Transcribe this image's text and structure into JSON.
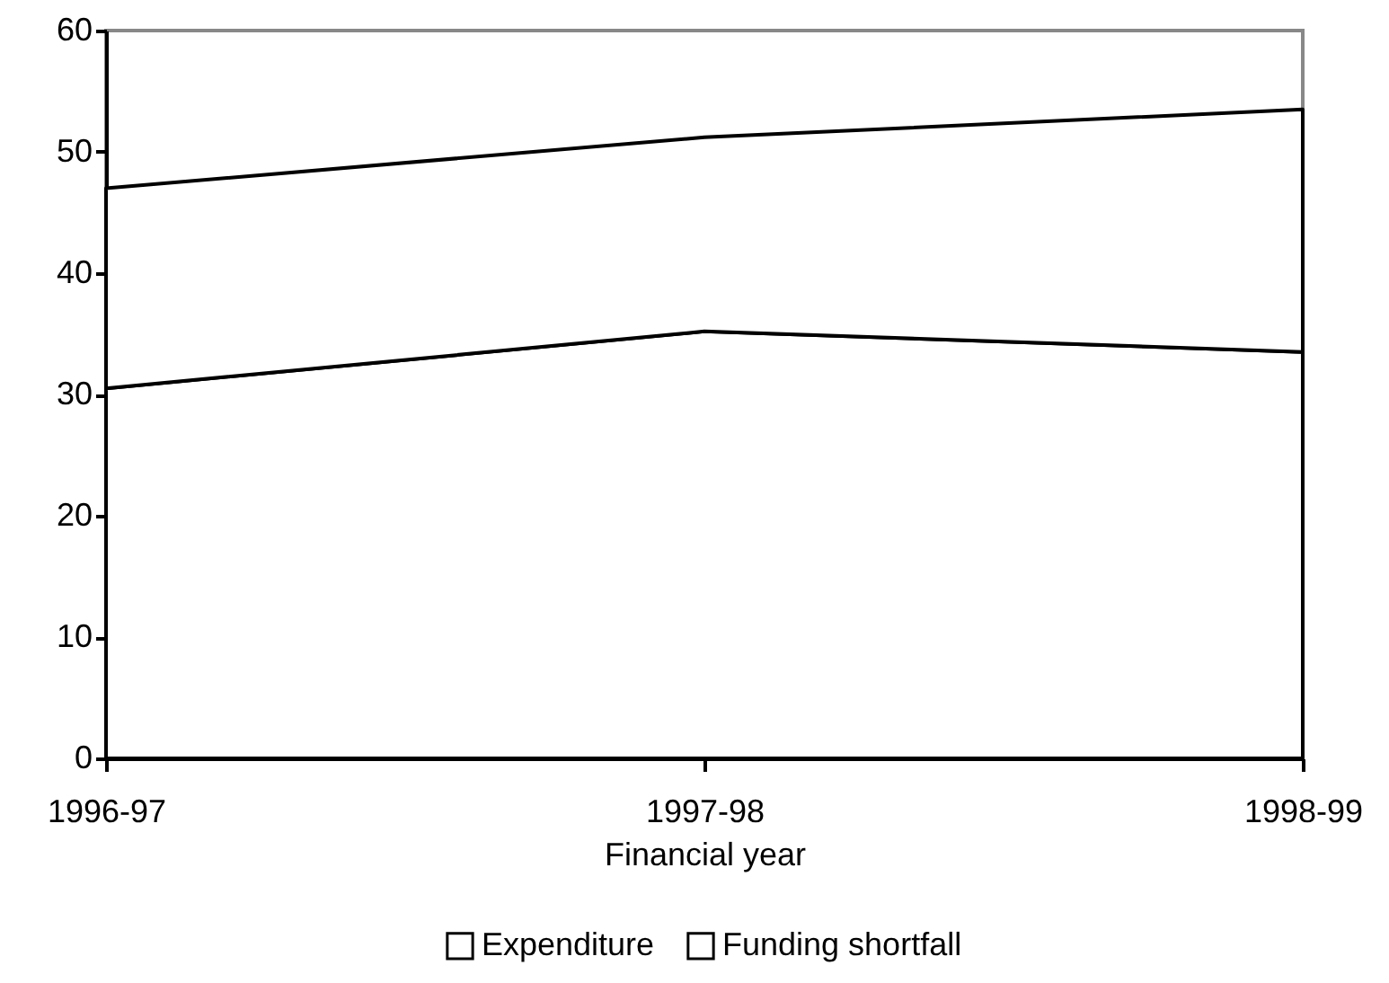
{
  "chart_data": {
    "type": "area",
    "stacked": true,
    "xlabel": "Financial year",
    "categories": [
      "1996-97",
      "1997-98",
      "1998-99"
    ],
    "series": [
      {
        "name": "Expenditure",
        "color": "#ffffff",
        "values": [
          30.5,
          35.2,
          33.5
        ]
      },
      {
        "name": "Funding shortfall",
        "color": "#ffffff",
        "values": [
          16.5,
          16.0,
          20.0
        ]
      }
    ],
    "ylim": [
      0,
      60
    ],
    "yticks": [
      0,
      10,
      20,
      30,
      40,
      50,
      60
    ],
    "grid": false,
    "legend": "bottom"
  }
}
